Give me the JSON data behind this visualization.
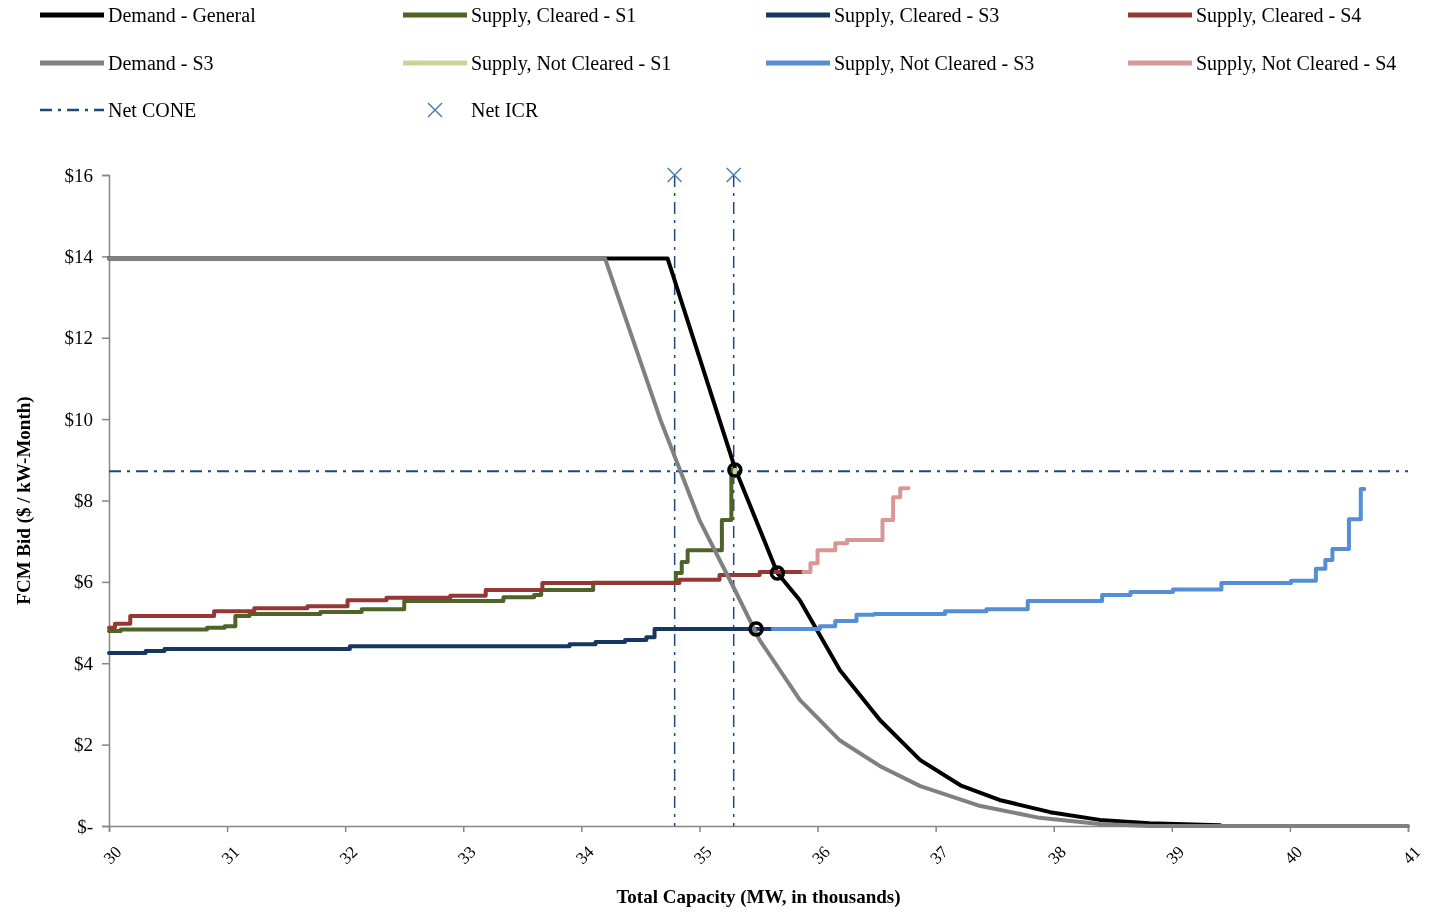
{
  "chart_data": {
    "type": "line",
    "xlabel": "Total  Capacity  (MW,  in thousands)",
    "ylabel": "FCM  Bid ($ / kW-Month)",
    "xlim": [
      30,
      41
    ],
    "xticks": [
      30,
      31,
      32,
      33,
      34,
      35,
      36,
      37,
      38,
      39,
      40,
      41
    ],
    "ylim": [
      0,
      16
    ],
    "yticks": [
      {
        "value": 0,
        "label": "$-"
      },
      {
        "value": 2,
        "label": "$2"
      },
      {
        "value": 4,
        "label": "$4"
      },
      {
        "value": 6,
        "label": "$6"
      },
      {
        "value": 8,
        "label": "$8"
      },
      {
        "value": 10,
        "label": "$10"
      },
      {
        "value": 12,
        "label": "$12"
      },
      {
        "value": 14,
        "label": "$14"
      },
      {
        "value": 16,
        "label": "$16"
      }
    ],
    "grid": false,
    "legend": "top",
    "series": [
      {
        "name": "Demand - General",
        "color": "#000000",
        "x": [
          30,
          34.73,
          35.3,
          35.66,
          35.85,
          36.19,
          36.53,
          36.87,
          37.21,
          37.54,
          37.97,
          38.39,
          38.81,
          39.41
        ],
        "values": [
          13.95,
          13.95,
          8.8,
          6.22,
          5.55,
          3.83,
          2.6,
          1.62,
          1.0,
          0.64,
          0.34,
          0.15,
          0.07,
          0.02
        ]
      },
      {
        "name": "Supply, Cleared - S1",
        "type": "step",
        "color": "#4f6228",
        "x": [
          30,
          30.1,
          30.83,
          30.98,
          31.07,
          31.19,
          31.79,
          32.14,
          32.5,
          33.34,
          33.6,
          33.66,
          34.1,
          34.8,
          34.85,
          34.9,
          35.19,
          35.27,
          35.3
        ],
        "values": [
          4.79,
          4.83,
          4.87,
          4.91,
          5.16,
          5.21,
          5.26,
          5.33,
          5.53,
          5.62,
          5.68,
          5.8,
          5.98,
          6.22,
          6.49,
          6.78,
          7.52,
          8.75,
          8.75
        ]
      },
      {
        "name": "Supply, Cleared - S3",
        "type": "step",
        "color": "#17375e",
        "x": [
          30,
          30.31,
          30.47,
          32.04,
          33.9,
          34.12,
          34.37,
          34.55,
          34.62,
          35.62
        ],
        "values": [
          4.25,
          4.3,
          4.35,
          4.42,
          4.47,
          4.52,
          4.57,
          4.64,
          4.84,
          4.84
        ]
      },
      {
        "name": "Supply, Cleared - S4",
        "type": "step",
        "color": "#953735",
        "x": [
          30,
          30.05,
          30.18,
          30.89,
          31.23,
          31.68,
          32.02,
          32.35,
          32.89,
          33.19,
          33.67,
          34.83,
          35.17,
          35.51,
          35.88
        ],
        "values": [
          4.87,
          4.97,
          5.16,
          5.28,
          5.35,
          5.4,
          5.55,
          5.61,
          5.66,
          5.8,
          5.97,
          6.05,
          6.17,
          6.24,
          6.24
        ]
      },
      {
        "name": "Demand - S3",
        "color": "#808080",
        "x": [
          30,
          34.2,
          34.67,
          35.0,
          35.3,
          35.51,
          35.85,
          36.19,
          36.53,
          36.87,
          37.38,
          37.88,
          38.39,
          38.81,
          41
        ],
        "values": [
          13.95,
          13.95,
          9.98,
          7.52,
          5.8,
          4.57,
          3.1,
          2.1,
          1.47,
          0.98,
          0.49,
          0.2,
          0.05,
          0,
          0
        ]
      },
      {
        "name": "Supply, Not Cleared - S1",
        "type": "step",
        "color": "#c3d69b",
        "x": [
          35.29,
          35.3,
          35.31
        ],
        "values": [
          8.6,
          8.75,
          8.75
        ]
      },
      {
        "name": "Supply, Not Cleared - S3",
        "type": "step",
        "color": "#558ed5",
        "x": [
          35.62,
          36.02,
          36.15,
          36.33,
          36.48,
          37.08,
          37.43,
          37.78,
          38.41,
          38.65,
          39.01,
          39.42,
          40.01,
          40.22,
          40.3,
          40.36,
          40.5,
          40.6,
          40.63
        ],
        "values": [
          4.84,
          4.91,
          5.04,
          5.19,
          5.21,
          5.28,
          5.33,
          5.53,
          5.68,
          5.75,
          5.81,
          5.97,
          6.03,
          6.32,
          6.54,
          6.81,
          7.54,
          8.28,
          8.28
        ]
      },
      {
        "name": "Supply, Not Cleared - S4",
        "type": "step",
        "color": "#d99694",
        "x": [
          35.88,
          35.94,
          36.0,
          36.15,
          36.25,
          36.55,
          36.64,
          36.7,
          36.77
        ],
        "values": [
          6.24,
          6.46,
          6.78,
          6.95,
          7.03,
          7.52,
          8.08,
          8.3,
          8.3
        ]
      },
      {
        "type": "scatter",
        "marker": "circle",
        "color": "#000000",
        "x": [
          35.3,
          35.66,
          35.48
        ],
        "values": [
          8.75,
          6.22,
          4.84
        ]
      },
      {
        "name": "Net ICR",
        "type": "scatter",
        "marker": "cross",
        "color": "#4a7ebb",
        "x": [
          34.79,
          35.29
        ],
        "values": [
          16,
          16
        ]
      }
    ],
    "ref_lines": [
      {
        "axis": "y",
        "value": 8.72,
        "label": "Net CONE",
        "color": "#1f497d",
        "line_style": "dashdot"
      },
      {
        "axis": "x",
        "value": 34.79,
        "color": "#1f497d",
        "line_style": "dashdot"
      },
      {
        "axis": "x",
        "value": 35.29,
        "color": "#1f497d",
        "line_style": "dashdot"
      }
    ]
  }
}
